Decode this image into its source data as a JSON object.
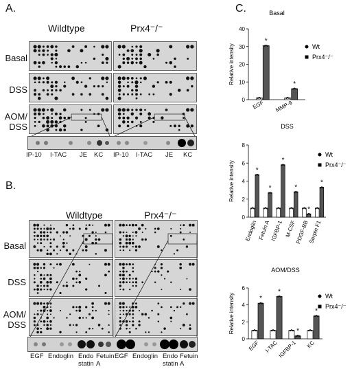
{
  "panel_a": {
    "letter": "A.",
    "col_labels": [
      "Wildtype",
      "Prx4⁻/⁻"
    ],
    "row_labels": [
      "Basal",
      "DSS",
      "AOM/\nDSS"
    ],
    "strip_labels": [
      "IP-10",
      "I-TAC",
      "JE",
      "KC",
      "IP-10",
      "I-TAC",
      "JE",
      "KC"
    ]
  },
  "panel_b": {
    "letter": "B.",
    "col_labels": [
      "Wildtype",
      "Prx4⁻/⁻"
    ],
    "row_labels": [
      "Basal",
      "DSS",
      "AOM/\nDSS"
    ],
    "strip_labels": [
      "EGF",
      "Endoglin",
      "Endo\nstatin",
      "Fetuin\nA",
      "EGF",
      "Endoglin",
      "Endo\nstatin",
      "Fetuin\nA"
    ]
  },
  "panel_c": {
    "letter": "C."
  },
  "colors": {
    "wt": "#ffffff",
    "ko": "#555555",
    "dot": "#111111"
  },
  "chart_data": [
    {
      "type": "bar",
      "title": "Basal",
      "ylabel": "Relative intensity",
      "ylim": [
        0,
        40
      ],
      "yticks": [
        "0",
        "10",
        "20",
        "30",
        "40"
      ],
      "categories": [
        "EGF",
        "MMP-9"
      ],
      "series": [
        {
          "name": "Wt",
          "values": [
            1,
            1
          ]
        },
        {
          "name": "Prx4⁻/⁻",
          "values": [
            30.5,
            6.2
          ]
        }
      ],
      "significance": [
        "*",
        "*"
      ],
      "legend": "right"
    },
    {
      "type": "bar",
      "title": "DSS",
      "ylabel": "Relative intensity",
      "ylim": [
        0,
        8
      ],
      "yticks": [
        "0",
        "2",
        "4",
        "6",
        "8"
      ],
      "categories": [
        "Endoglin",
        "Fetuin A",
        "IGFBP-1",
        "M-CSF",
        "PDGF-BB",
        "Serpin F1"
      ],
      "series": [
        {
          "name": "Wt",
          "values": [
            1,
            1,
            1,
            1,
            1,
            1
          ]
        },
        {
          "name": "Prx4⁻/⁻",
          "values": [
            4.7,
            2.7,
            5.8,
            2.8,
            0.35,
            3.3
          ]
        }
      ],
      "significance": [
        "*",
        "*",
        "*",
        "*",
        "*",
        "*"
      ],
      "legend": "right"
    },
    {
      "type": "bar",
      "title": "AOM/DSS",
      "ylabel": "Relative intensity",
      "ylim": [
        0,
        6
      ],
      "yticks": [
        "0",
        "2",
        "4",
        "6"
      ],
      "categories": [
        "EGF",
        "I-TAC",
        "IGFBP-1",
        "KC"
      ],
      "series": [
        {
          "name": "Wt",
          "values": [
            1,
            1,
            1,
            1
          ]
        },
        {
          "name": "Prx4⁻/⁻",
          "values": [
            4.2,
            5.0,
            0.35,
            2.7
          ]
        }
      ],
      "significance": [
        "*",
        "*",
        "*",
        "*"
      ],
      "legend": "right"
    }
  ]
}
